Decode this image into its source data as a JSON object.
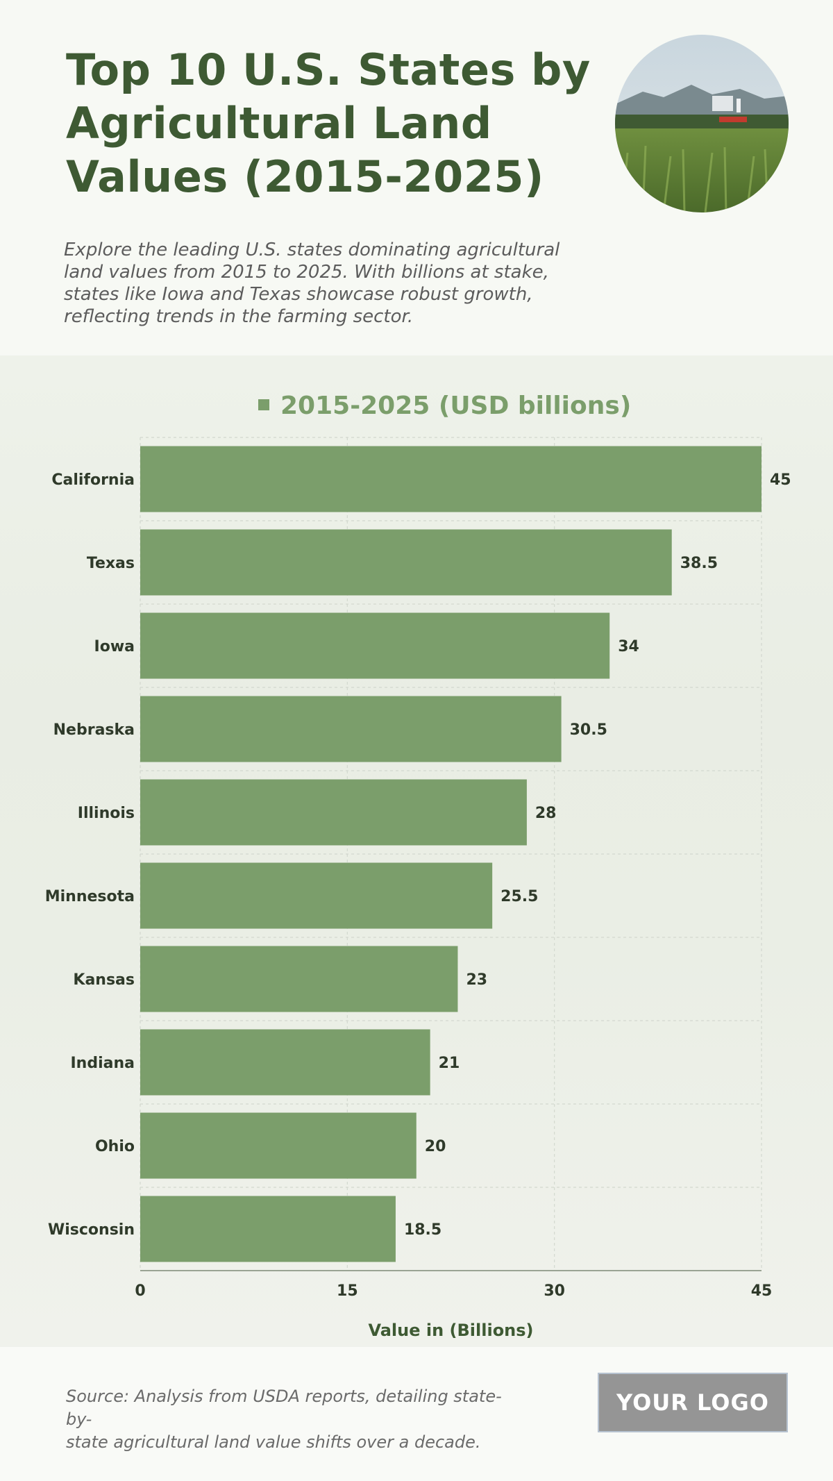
{
  "header": {
    "title_lines": [
      "Top 10 U.S. States by",
      "Agricultural Land",
      "Values (2015-2025)"
    ],
    "intro_lines": [
      "Explore the leading U.S. states dominating agricultural",
      "land values from 2015 to 2025. With billions at stake,",
      "states like Iowa and Texas showcase robust growth,",
      "reflecting trends in the farming sector."
    ]
  },
  "chart_data": {
    "type": "bar",
    "orientation": "horizontal",
    "categories": [
      "California",
      "Texas",
      "Iowa",
      "Nebraska",
      "Illinois",
      "Minnesota",
      "Kansas",
      "Indiana",
      "Ohio",
      "Wisconsin"
    ],
    "series": [
      {
        "name": "2015-2025 (USD billions)",
        "values": [
          45,
          38.5,
          34,
          30.5,
          28,
          25.5,
          23,
          21,
          20,
          18.5
        ],
        "color": "#7b9e6b"
      }
    ],
    "xlabel": "Value in (Billions)",
    "ylabel": "",
    "xlim": [
      0,
      45
    ],
    "xticks": [
      0,
      15,
      30,
      45
    ],
    "grid": true,
    "legend": "top-center"
  },
  "footer": {
    "source_lines": [
      "Source: Analysis from USDA reports, detailing state-by-",
      "state agricultural land value shifts over a decade."
    ],
    "logo_text": "YOUR LOGO"
  },
  "colors": {
    "title": "#3e5a33",
    "bar": "#7b9e6b",
    "label": "#2f3a2a",
    "legend": "#7b9e6b"
  }
}
